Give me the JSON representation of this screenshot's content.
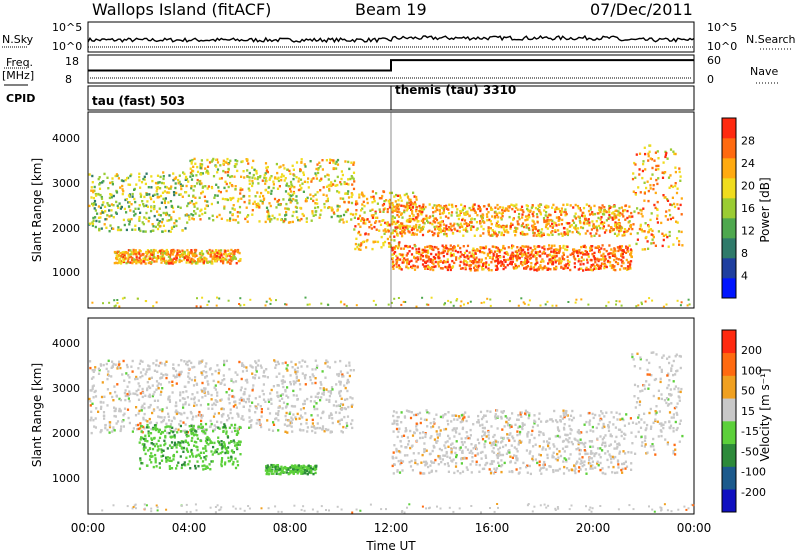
{
  "header": {
    "station": "Wallops Island (fitACF)",
    "beam": "Beam 19",
    "date": "07/Dec/2011"
  },
  "top_panels": {
    "nsky_label": "N.Sky",
    "nsky_ticks": [
      "10^5",
      "10^0"
    ],
    "nsearch_label": "N.Search",
    "nsearch_ticks": [
      "10^5",
      "10^0"
    ],
    "freq_label": "Freq.",
    "freq_unit": "[MHz]",
    "freq_ticks": [
      "18",
      "8"
    ],
    "nave_label": "Nave",
    "nave_ticks": [
      "60",
      "0"
    ],
    "cpid_label": "CPID",
    "cpid_segments": [
      {
        "label": "tau (fast) 503",
        "start_hour": 0,
        "end_hour": 12
      },
      {
        "label": "themis (tau) 3310",
        "start_hour": 12,
        "end_hour": 24
      }
    ],
    "nave_steps": [
      {
        "start_hour": 0,
        "end_hour": 12,
        "value": 12
      },
      {
        "start_hour": 12,
        "end_hour": 24,
        "value": 22
      }
    ]
  },
  "power_panel": {
    "ylabel": "Slant Range [km]",
    "yticks": [
      "1000",
      "2000",
      "3000",
      "4000"
    ],
    "colorbar_label": "Power [dB]",
    "colorbar_ticks": [
      "4",
      "8",
      "12",
      "16",
      "20",
      "24",
      "28"
    ],
    "colors": [
      "#0015ff",
      "#1f3f9f",
      "#2f7a6a",
      "#4ea84e",
      "#9acc33",
      "#f0dc1e",
      "#ffaa10",
      "#ff6a10",
      "#ff2a10"
    ]
  },
  "velocity_panel": {
    "ylabel": "Slant Range [km]",
    "yticks": [
      "1000",
      "2000",
      "3000",
      "4000"
    ],
    "colorbar_label": "Velocity [m s⁻¹]",
    "colorbar_ticks": [
      "200",
      "100",
      "50",
      "15",
      "-15",
      "-50",
      "-100",
      "-200"
    ],
    "colors": [
      "#1010c0",
      "#1c5a8c",
      "#2d8a3a",
      "#5cd03a",
      "#c8c8c8",
      "#f0a020",
      "#ff6a10",
      "#ff2a10"
    ]
  },
  "x_axis": {
    "ticks": [
      "00:00",
      "04:00",
      "08:00",
      "12:00",
      "16:00",
      "20:00",
      "00:00"
    ],
    "label": "Time UT"
  },
  "chart_data": [
    {
      "type": "heatmap",
      "title": "",
      "xlabel": "Time UT",
      "ylabel": "Slant Range [km]",
      "xlim": [
        0,
        24
      ],
      "ylim": [
        200,
        4500
      ],
      "colorbar": "Power [dB]",
      "colorbar_range": [
        4,
        30
      ],
      "features": [
        {
          "region": "early morning echoes",
          "time_range": [
            0,
            4
          ],
          "range_km": [
            1900,
            3200
          ],
          "power_db": 16
        },
        {
          "region": "low band",
          "time_range": [
            1,
            6
          ],
          "range_km": [
            1200,
            1500
          ],
          "power_db": 24
        },
        {
          "region": "morning arc",
          "time_range": [
            4,
            10.5
          ],
          "range_km": [
            2100,
            3500
          ],
          "power_db": 20
        },
        {
          "region": "evening descent",
          "time_range": [
            10.5,
            13
          ],
          "range_km": [
            1500,
            2800
          ],
          "power_db": 24
        },
        {
          "region": "strong band",
          "time_range": [
            12,
            21.5
          ],
          "range_km": [
            1050,
            1600
          ],
          "power_db": 28
        },
        {
          "region": "upper layer",
          "time_range": [
            12,
            21.5
          ],
          "range_km": [
            1800,
            2500
          ],
          "power_db": 22
        },
        {
          "region": "late rise",
          "time_range": [
            21.5,
            23.5
          ],
          "range_km": [
            1500,
            3800
          ],
          "power_db": 24
        }
      ]
    },
    {
      "type": "heatmap",
      "title": "",
      "xlabel": "Time UT",
      "ylabel": "Slant Range [km]",
      "xlim": [
        0,
        24
      ],
      "ylim": [
        200,
        4500
      ],
      "colorbar": "Velocity [m s⁻¹]",
      "colorbar_range": [
        -200,
        200
      ],
      "features": [
        {
          "region": "morning arc",
          "time_range": [
            0,
            10.5
          ],
          "range_km": [
            2000,
            3600
          ],
          "velocity_ms": 0
        },
        {
          "region": "green patch",
          "time_range": [
            2,
            6
          ],
          "range_km": [
            1200,
            2200
          ],
          "velocity_ms": 40
        },
        {
          "region": "low band",
          "time_range": [
            7,
            9
          ],
          "range_km": [
            1100,
            1300
          ],
          "velocity_ms": 40
        },
        {
          "region": "grey band",
          "time_range": [
            12,
            21.5
          ],
          "range_km": [
            1100,
            2500
          ],
          "velocity_ms": 0
        },
        {
          "region": "late rise",
          "time_range": [
            21.5,
            23.5
          ],
          "range_km": [
            1500,
            3800
          ],
          "velocity_ms": 0
        }
      ]
    }
  ]
}
